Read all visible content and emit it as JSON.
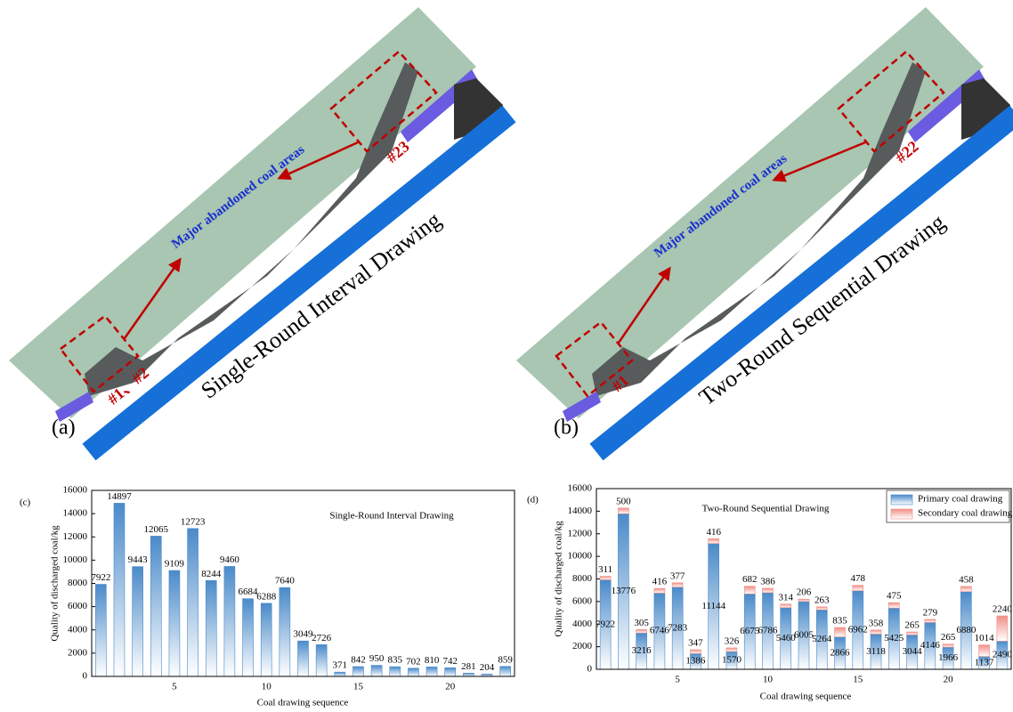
{
  "panels": [
    {
      "label": "(a)",
      "title": "Single-Round Interval Drawing",
      "annotation": "Major abandoned coal areas",
      "markers": [
        "#1、#2",
        "#23"
      ]
    },
    {
      "label": "(b)",
      "title": "Two-Round Sequential Drawing",
      "annotation": "Major abandoned coal areas",
      "markers": [
        "#1",
        "#22"
      ]
    }
  ],
  "chart_data": [
    {
      "type": "bar",
      "label": "(c)",
      "title": "Single-Round Interval Drawing",
      "x_label": "Coal drawing sequence",
      "y_label": "Quality of discharged coal/kg",
      "x": [
        1,
        2,
        3,
        4,
        5,
        6,
        7,
        8,
        9,
        10,
        11,
        12,
        13,
        14,
        15,
        16,
        17,
        18,
        19,
        20,
        21,
        22,
        23
      ],
      "values": [
        7922,
        14897,
        9443,
        12065,
        9109,
        12723,
        8244,
        9460,
        6684,
        6288,
        7640,
        3049,
        2726,
        371,
        842,
        950,
        835,
        702,
        810,
        742,
        281,
        204,
        859
      ],
      "color": "#4a8ac9",
      "xlim": [
        0.5,
        23.5
      ],
      "xticks": [
        5,
        10,
        15,
        20
      ],
      "ylim": [
        0,
        16000
      ],
      "yticks": [
        0,
        2000,
        4000,
        6000,
        8000,
        10000,
        12000,
        14000,
        16000
      ]
    },
    {
      "type": "bar",
      "stacked": true,
      "label": "(d)",
      "title": "Two-Round Sequential Drawing",
      "x_label": "Coal drawing sequence",
      "y_label": "Quality of discharged coal/kg",
      "x": [
        1,
        2,
        3,
        4,
        5,
        6,
        7,
        8,
        9,
        10,
        11,
        12,
        13,
        14,
        15,
        16,
        17,
        18,
        19,
        20,
        21,
        22,
        23
      ],
      "series": [
        {
          "name": "Primary coal drawing",
          "color": "#4a8ac9",
          "values": [
            7922,
            13776,
            3216,
            6746,
            7283,
            1386,
            11144,
            1570,
            6675,
            6786,
            5460,
            6005,
            5264,
            2866,
            6962,
            3118,
            5425,
            3044,
            4146,
            1966,
            6880,
            1137,
            2490
          ]
        },
        {
          "name": "Secondary coal drawing",
          "color": "#f08f86",
          "values": [
            311,
            500,
            305,
            416,
            377,
            347,
            416,
            326,
            682,
            386,
            314,
            206,
            263,
            835,
            478,
            358,
            475,
            265,
            279,
            265,
            458,
            1014,
            2240
          ]
        }
      ],
      "legend": "upper right",
      "xlim": [
        0.5,
        23.5
      ],
      "xticks": [
        5,
        10,
        15,
        20
      ],
      "ylim": [
        0,
        16000
      ],
      "yticks": [
        0,
        2000,
        4000,
        6000,
        8000,
        10000,
        12000,
        14000,
        16000
      ]
    }
  ]
}
